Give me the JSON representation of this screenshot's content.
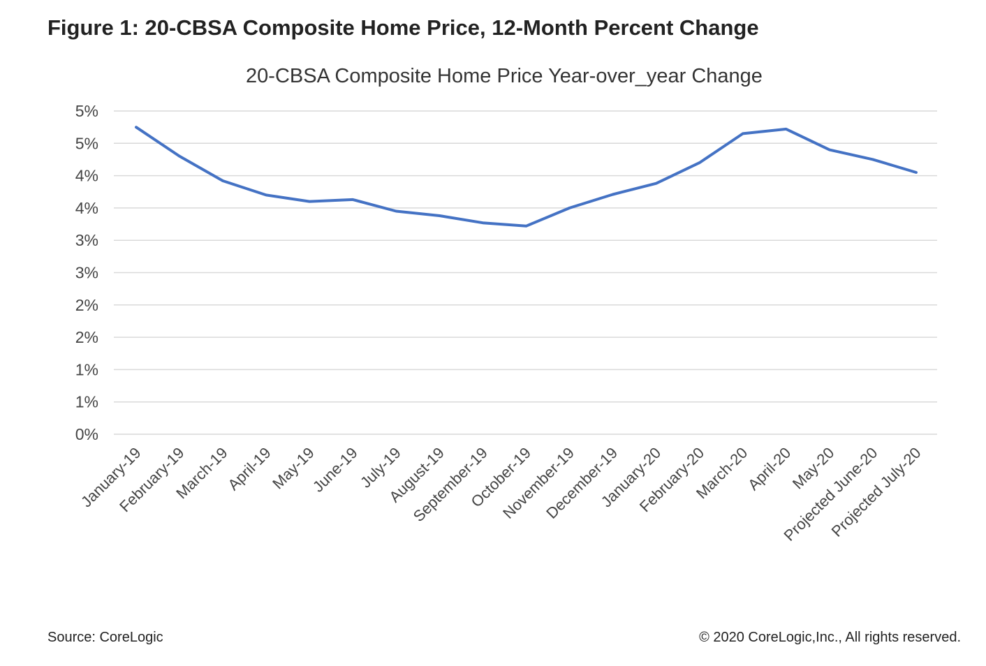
{
  "figure_title": "Figure 1: 20-CBSA Composite Home Price, 12-Month Percent Change",
  "source": "Source: CoreLogic",
  "copyright": "© 2020 CoreLogic,Inc., All rights reserved.",
  "colors": {
    "series": "#4472c4",
    "grid": "#d9d9d9"
  },
  "chart_data": {
    "type": "line",
    "title": "20-CBSA Composite Home Price Year-over_year Change",
    "xlabel": "",
    "ylabel": "",
    "ylim": [
      0,
      5
    ],
    "ytick_labels": [
      "0%",
      "1%",
      "1%",
      "2%",
      "2%",
      "3%",
      "3%",
      "4%",
      "4%",
      "5%",
      "5%"
    ],
    "grid": true,
    "categories": [
      "January-19",
      "February-19",
      "March-19",
      "April-19",
      "May-19",
      "June-19",
      "July-19",
      "August-19",
      "September-19",
      "October-19",
      "November-19",
      "December-19",
      "January-20",
      "February-20",
      "March-20",
      "April-20",
      "May-20",
      "Projected June-20",
      "Projected July-20"
    ],
    "series": [
      {
        "values": [
          4.75,
          4.3,
          3.92,
          3.7,
          3.6,
          3.63,
          3.45,
          3.38,
          3.27,
          3.22,
          3.5,
          3.71,
          3.88,
          4.2,
          4.65,
          4.72,
          4.4,
          4.25,
          4.05
        ]
      }
    ]
  }
}
